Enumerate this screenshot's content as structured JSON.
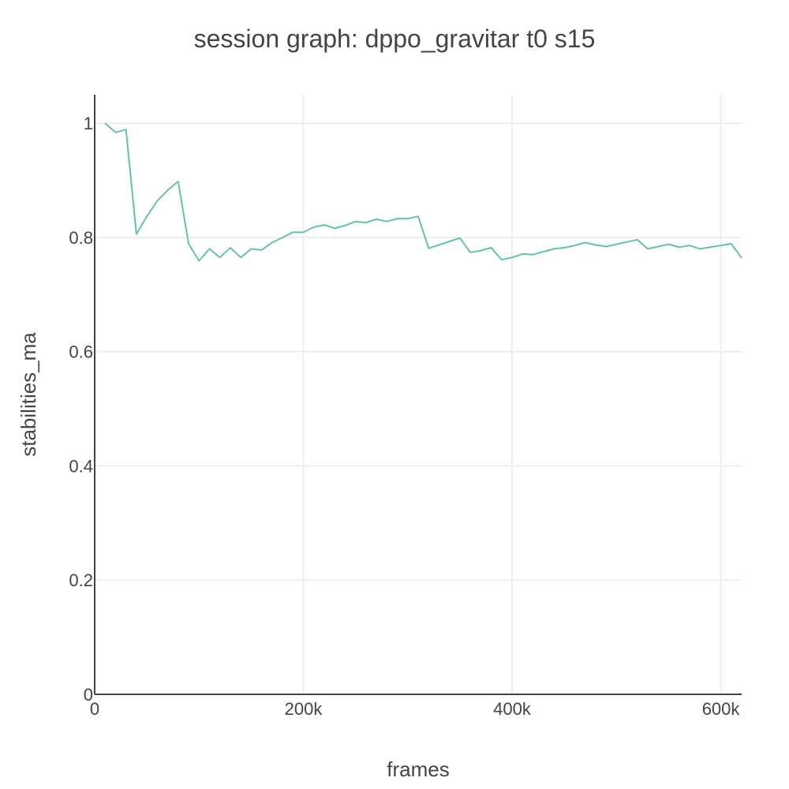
{
  "chart_data": {
    "type": "line",
    "title": "session graph: dppo_gravitar t0 s15",
    "xlabel": "frames",
    "ylabel": "stabilities_ma",
    "xlim": [
      0,
      620000
    ],
    "ylim": [
      0,
      1.05
    ],
    "x_ticks": [
      {
        "value": 0,
        "label": "0"
      },
      {
        "value": 200000,
        "label": "200k"
      },
      {
        "value": 400000,
        "label": "400k"
      },
      {
        "value": 600000,
        "label": "600k"
      }
    ],
    "y_ticks": [
      {
        "value": 0,
        "label": "0"
      },
      {
        "value": 0.2,
        "label": "0.2"
      },
      {
        "value": 0.4,
        "label": "0.4"
      },
      {
        "value": 0.6,
        "label": "0.6"
      },
      {
        "value": 0.8,
        "label": "0.8"
      },
      {
        "value": 1,
        "label": "1"
      }
    ],
    "grid": true,
    "series": [
      {
        "color": "#66c2a5",
        "x": [
          10000,
          20000,
          30000,
          40000,
          50000,
          60000,
          70000,
          80000,
          90000,
          100000,
          110000,
          120000,
          130000,
          140000,
          150000,
          160000,
          170000,
          180000,
          190000,
          200000,
          210000,
          220000,
          230000,
          240000,
          250000,
          260000,
          270000,
          280000,
          290000,
          300000,
          310000,
          320000,
          330000,
          340000,
          350000,
          360000,
          370000,
          380000,
          390000,
          400000,
          410000,
          420000,
          430000,
          440000,
          450000,
          460000,
          470000,
          480000,
          490000,
          500000,
          510000,
          520000,
          530000,
          540000,
          550000,
          560000,
          570000,
          580000,
          590000,
          600000,
          610000,
          620000
        ],
        "y": [
          1.0,
          0.984,
          0.989,
          0.806,
          0.837,
          0.864,
          0.883,
          0.898,
          0.789,
          0.759,
          0.78,
          0.765,
          0.782,
          0.765,
          0.78,
          0.778,
          0.791,
          0.8,
          0.809,
          0.809,
          0.818,
          0.822,
          0.816,
          0.821,
          0.828,
          0.826,
          0.832,
          0.828,
          0.833,
          0.833,
          0.837,
          0.781,
          0.787,
          0.793,
          0.799,
          0.774,
          0.777,
          0.782,
          0.761,
          0.765,
          0.771,
          0.77,
          0.775,
          0.78,
          0.782,
          0.786,
          0.791,
          0.787,
          0.784,
          0.788,
          0.792,
          0.796,
          0.78,
          0.784,
          0.788,
          0.783,
          0.786,
          0.78,
          0.783,
          0.786,
          0.789,
          0.764
        ]
      }
    ]
  }
}
